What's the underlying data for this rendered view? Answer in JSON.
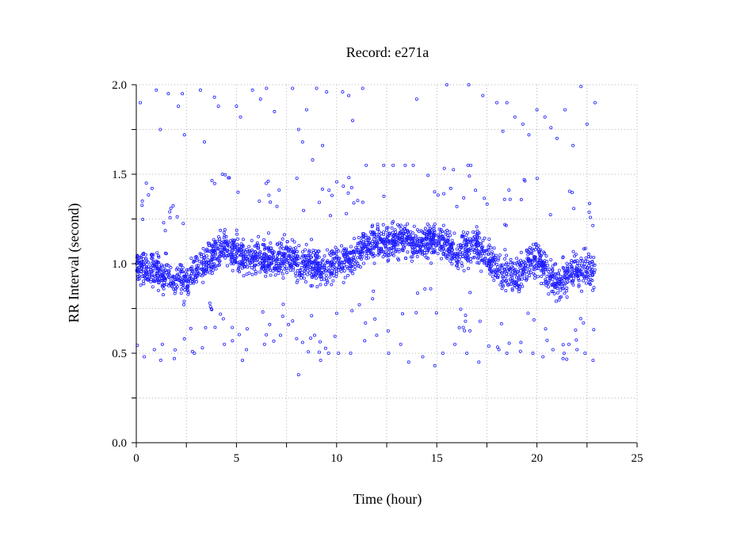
{
  "chart_data": {
    "type": "scatter",
    "title": "Record:  e271a",
    "xlabel": "Time (hour)",
    "ylabel": "RR Interval (second)",
    "xlim": [
      0,
      25
    ],
    "ylim": [
      0,
      2.0
    ],
    "x_ticks": [
      0,
      5,
      10,
      15,
      20,
      25
    ],
    "x_tick_labels": [
      "0",
      "5",
      "10",
      "15",
      "20",
      "25"
    ],
    "y_ticks": [
      0,
      0.5,
      1.0,
      1.5,
      2.0
    ],
    "y_tick_labels": [
      "0.0",
      "0.5",
      "1.0",
      "1.5",
      "2.0"
    ],
    "grid": true,
    "marker_color": "#1f1fff",
    "series": [
      {
        "marker": "open-circle",
        "trend_x": [
          0,
          0.5,
          1,
          1.5,
          2,
          2.5,
          3,
          3.5,
          4,
          4.5,
          5,
          5.5,
          6,
          6.5,
          7,
          7.5,
          8,
          8.5,
          9,
          9.5,
          10,
          10.5,
          11,
          11.5,
          12,
          12.5,
          13,
          13.5,
          14,
          14.5,
          15,
          15.5,
          16,
          16.5,
          17,
          17.5,
          18,
          18.5,
          19,
          19.5,
          20,
          20.5,
          21,
          21.5,
          22,
          22.5,
          22.9
        ],
        "trend_y": [
          1.0,
          0.98,
          0.95,
          0.93,
          0.92,
          0.9,
          0.97,
          1.02,
          1.07,
          1.1,
          1.05,
          1.02,
          1.04,
          1.03,
          1.02,
          1.03,
          1.0,
          1.01,
          0.98,
          0.97,
          1.02,
          1.01,
          1.06,
          1.1,
          1.13,
          1.11,
          1.12,
          1.15,
          1.1,
          1.13,
          1.12,
          1.11,
          1.06,
          1.08,
          1.11,
          1.04,
          0.97,
          0.95,
          0.92,
          1.0,
          1.02,
          0.95,
          0.9,
          0.93,
          0.97,
          0.95,
          0.95
        ],
        "outliers": [
          [
            0.2,
            1.9
          ],
          [
            0.3,
            1.35
          ],
          [
            0.5,
            1.45
          ],
          [
            1.0,
            1.97
          ],
          [
            1.2,
            1.75
          ],
          [
            1.6,
            1.95
          ],
          [
            2.1,
            1.88
          ],
          [
            2.3,
            1.95
          ],
          [
            2.4,
            1.72
          ],
          [
            3.2,
            1.97
          ],
          [
            3.4,
            1.68
          ],
          [
            3.9,
            1.93
          ],
          [
            4.1,
            1.88
          ],
          [
            4.3,
            1.5
          ],
          [
            4.6,
            1.48
          ],
          [
            5.0,
            1.88
          ],
          [
            5.2,
            1.82
          ],
          [
            5.8,
            1.97
          ],
          [
            6.2,
            1.92
          ],
          [
            6.5,
            1.98
          ],
          [
            6.9,
            1.85
          ],
          [
            7.8,
            1.98
          ],
          [
            8.1,
            1.75
          ],
          [
            8.3,
            1.68
          ],
          [
            8.5,
            1.86
          ],
          [
            8.8,
            1.58
          ],
          [
            9.0,
            1.98
          ],
          [
            9.3,
            1.66
          ],
          [
            9.5,
            1.96
          ],
          [
            10.3,
            1.96
          ],
          [
            10.6,
            1.94
          ],
          [
            10.8,
            1.8
          ],
          [
            11.3,
            1.98
          ],
          [
            14.0,
            1.92
          ],
          [
            15.5,
            2.0
          ],
          [
            16.6,
            2.0
          ],
          [
            17.3,
            1.94
          ],
          [
            18.0,
            1.9
          ],
          [
            18.3,
            1.74
          ],
          [
            18.5,
            1.9
          ],
          [
            18.9,
            1.82
          ],
          [
            19.3,
            1.78
          ],
          [
            19.6,
            1.72
          ],
          [
            20.0,
            1.86
          ],
          [
            20.4,
            1.82
          ],
          [
            20.7,
            1.76
          ],
          [
            21.0,
            1.7
          ],
          [
            21.4,
            1.86
          ],
          [
            21.8,
            1.66
          ],
          [
            22.2,
            1.99
          ],
          [
            22.5,
            1.78
          ],
          [
            22.9,
            1.9
          ],
          [
            0.4,
            0.48
          ],
          [
            0.9,
            0.52
          ],
          [
            1.3,
            0.55
          ],
          [
            1.9,
            0.47
          ],
          [
            2.4,
            0.58
          ],
          [
            2.9,
            0.5
          ],
          [
            3.3,
            0.53
          ],
          [
            4.4,
            0.55
          ],
          [
            4.8,
            0.57
          ],
          [
            5.3,
            0.46
          ],
          [
            5.5,
            0.52
          ],
          [
            6.4,
            0.55
          ],
          [
            7.2,
            0.6
          ],
          [
            7.6,
            0.66
          ],
          [
            8.1,
            0.38
          ],
          [
            8.3,
            0.56
          ],
          [
            8.9,
            0.6
          ],
          [
            9.2,
            0.46
          ],
          [
            9.6,
            0.5
          ],
          [
            10.1,
            0.5
          ],
          [
            10.7,
            0.5
          ],
          [
            11.4,
            0.57
          ],
          [
            12.0,
            0.6
          ],
          [
            12.6,
            0.5
          ],
          [
            13.2,
            0.55
          ],
          [
            13.6,
            0.45
          ],
          [
            14.3,
            0.48
          ],
          [
            14.9,
            0.43
          ],
          [
            15.3,
            0.5
          ],
          [
            15.9,
            0.55
          ],
          [
            16.5,
            0.5
          ],
          [
            17.1,
            0.45
          ],
          [
            17.6,
            0.54
          ],
          [
            18.1,
            0.52
          ],
          [
            18.5,
            0.5
          ],
          [
            19.2,
            0.56
          ],
          [
            19.8,
            0.5
          ],
          [
            20.3,
            0.48
          ],
          [
            20.8,
            0.52
          ],
          [
            21.3,
            0.47
          ],
          [
            21.6,
            0.55
          ],
          [
            22.0,
            0.52
          ],
          [
            22.4,
            0.5
          ],
          [
            22.8,
            0.46
          ]
        ]
      }
    ]
  }
}
